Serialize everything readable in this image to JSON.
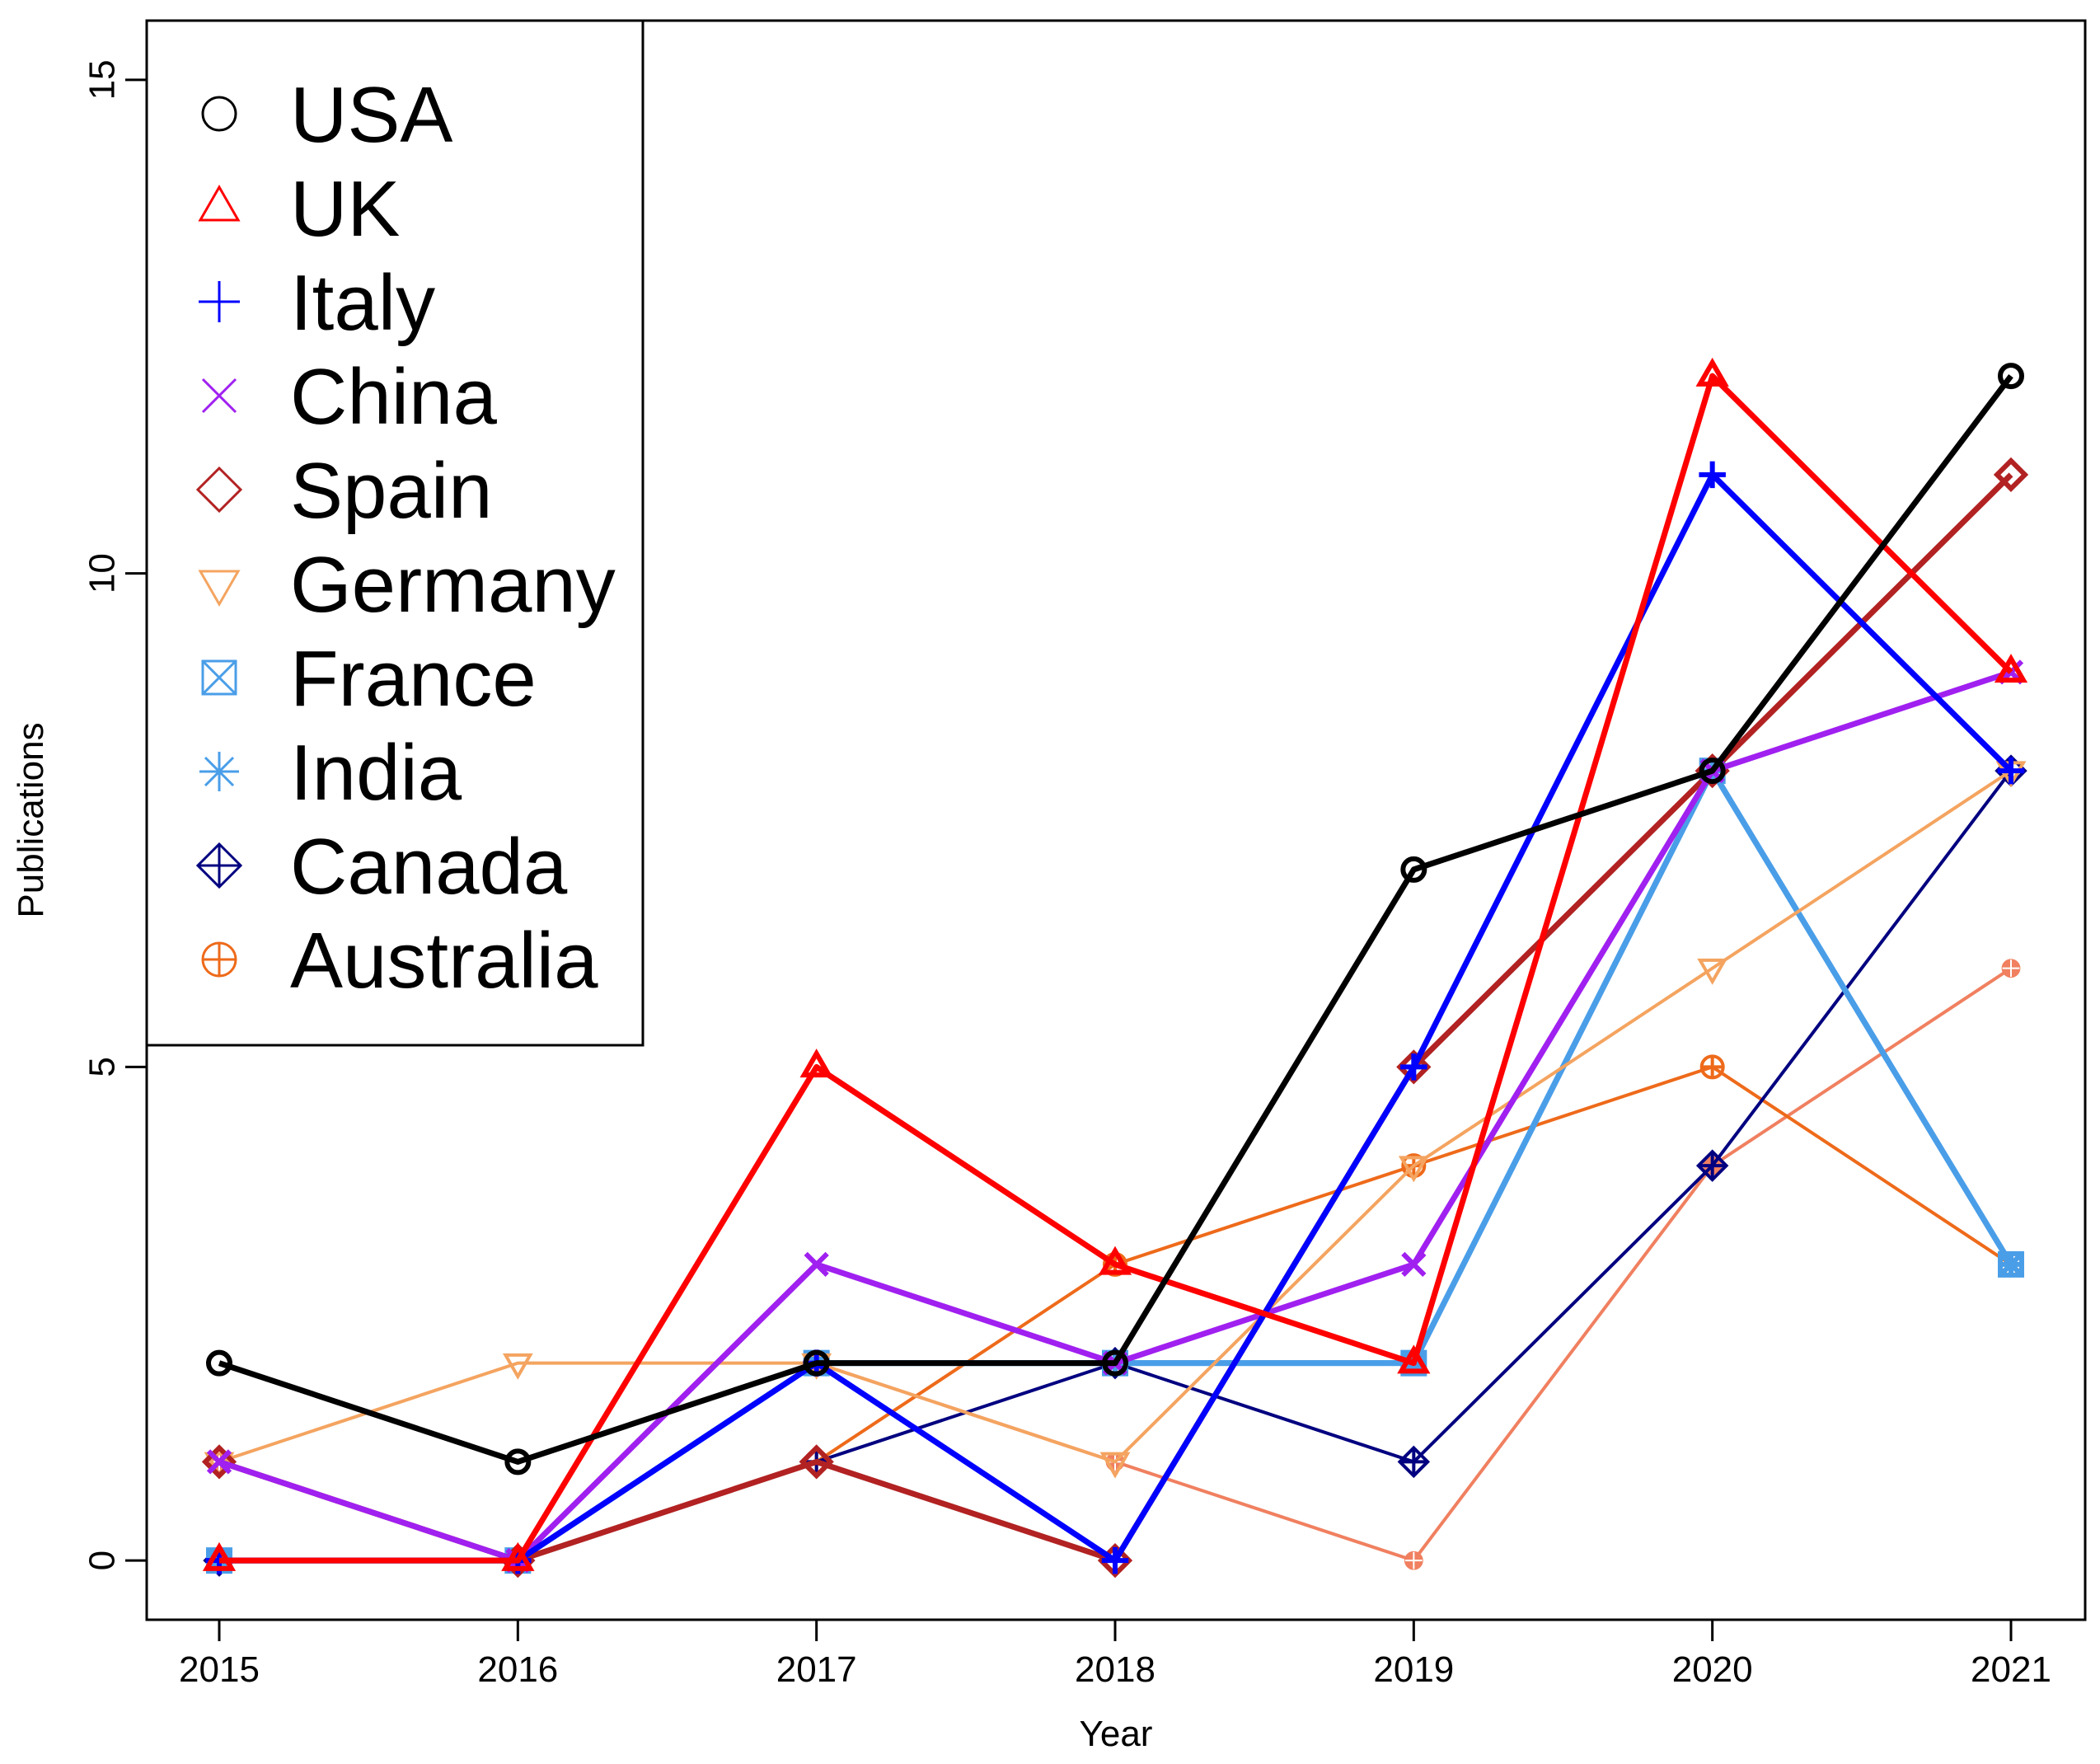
{
  "chart_data": {
    "type": "line",
    "title": "",
    "xlabel": "Year",
    "ylabel": "Publications",
    "x": [
      "2015",
      "2016",
      "2017",
      "2018",
      "2019",
      "2020",
      "2021"
    ],
    "xlim": [
      2015,
      2021
    ],
    "ylim": [
      -0.6,
      15.6
    ],
    "yticks": [
      "0",
      "5",
      "10",
      "15"
    ],
    "grid": false,
    "legend_position": "top-left",
    "series": [
      {
        "name": "USA",
        "color": "#000000",
        "marker": "circle",
        "values": [
          2,
          1,
          2,
          2,
          7,
          8,
          12
        ]
      },
      {
        "name": "UK",
        "color": "#ff0000",
        "marker": "triangle-up",
        "values": [
          0,
          0,
          5,
          3,
          2,
          12,
          9
        ]
      },
      {
        "name": "Italy",
        "color": "#0000ff",
        "marker": "plus",
        "values": [
          0,
          0,
          2,
          0,
          5,
          11,
          8
        ]
      },
      {
        "name": "China",
        "color": "#a020f0",
        "marker": "x",
        "values": [
          1,
          0,
          3,
          2,
          3,
          8,
          9
        ]
      },
      {
        "name": "Spain",
        "color": "#b22222",
        "marker": "diamond",
        "values": [
          1,
          0,
          1,
          0,
          5,
          8,
          11
        ]
      },
      {
        "name": "Germany",
        "color": "#f4a460",
        "marker": "triangle-down",
        "values": [
          1,
          2,
          2,
          1,
          4,
          6,
          8
        ]
      },
      {
        "name": "France",
        "color": "#4a9ee8",
        "marker": "square-x",
        "values": [
          0,
          0,
          2,
          2,
          2,
          8,
          3
        ]
      },
      {
        "name": "India",
        "color": "#4a9ee8",
        "marker": "asterisk",
        "values": [
          0,
          0,
          2,
          2,
          2,
          8,
          3
        ]
      },
      {
        "name": "Canada",
        "color": "#000080",
        "marker": "diamond-plus",
        "values": [
          0,
          0,
          1,
          2,
          1,
          4,
          8
        ]
      },
      {
        "name": "Australia",
        "color": "#ee6a1a",
        "marker": "circle-plus",
        "values": [
          0,
          0,
          1,
          3,
          4,
          5,
          3
        ]
      },
      {
        "color": "#f08060",
        "marker": "circle-plus-small",
        "values": [
          1,
          0,
          2,
          1,
          0,
          4,
          6
        ]
      }
    ]
  }
}
